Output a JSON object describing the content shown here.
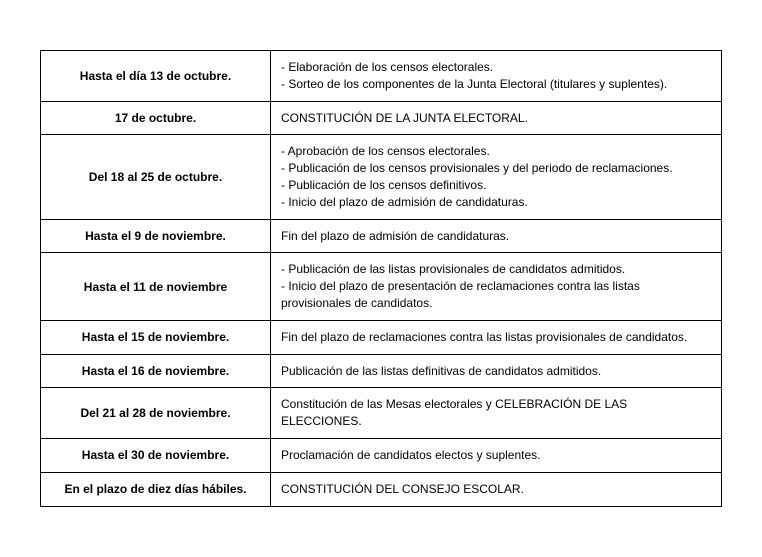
{
  "rows": [
    {
      "date": "Hasta el día 13 de octubre.",
      "items": [
        "- Elaboración de los censos electorales.",
        "- Sorteo de los componentes de la Junta Electoral (titulares y suplentes)."
      ]
    },
    {
      "date": "17 de octubre.",
      "items": [
        "CONSTITUCIÓN DE LA JUNTA ELECTORAL."
      ]
    },
    {
      "date": "Del 18 al 25 de octubre.",
      "items": [
        "- Aprobación de los censos electorales.",
        "- Publicación de los censos provisionales y del periodo de reclamaciones.",
        "- Publicación de los censos definitivos.",
        "- Inicio del plazo de admisión de candidaturas."
      ]
    },
    {
      "date": "Hasta el 9 de noviembre.",
      "items": [
        "Fin del plazo de admisión de candidaturas."
      ]
    },
    {
      "date": "Hasta el 11 de noviembre",
      "items": [
        "- Publicación de las listas provisionales de candidatos admitidos.",
        "- Inicio del plazo de presentación de reclamaciones contra las listas provisionales de candidatos."
      ]
    },
    {
      "date": "Hasta el 15 de noviembre.",
      "items": [
        "Fin del plazo de reclamaciones contra las listas provisionales de candidatos."
      ]
    },
    {
      "date": "Hasta el 16 de noviembre.",
      "items": [
        "Publicación de las listas definitivas de candidatos admitidos."
      ]
    },
    {
      "date": "Del 21 al 28 de noviembre.",
      "items": [
        "Constitución de las Mesas electorales y CELEBRACIÓN DE LAS ELECCIONES."
      ]
    },
    {
      "date": "Hasta el 30 de noviembre.",
      "items": [
        "Proclamación de candidatos electos y suplentes."
      ]
    },
    {
      "date": "En el plazo de diez días hábiles.",
      "items": [
        "CONSTITUCIÓN DEL CONSEJO ESCOLAR."
      ]
    }
  ]
}
